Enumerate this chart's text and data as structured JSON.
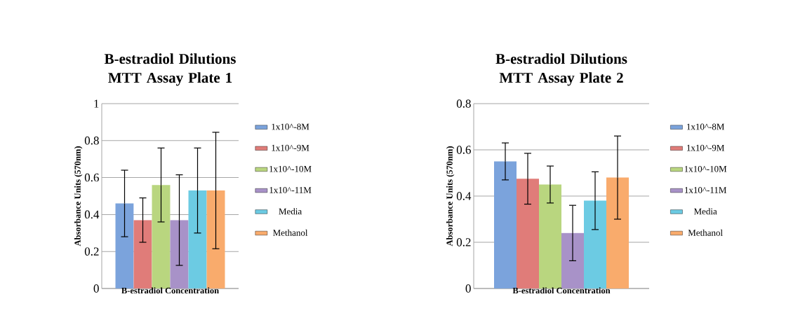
{
  "chart_data": [
    {
      "type": "bar",
      "title": "B-estradiol Dilutions MTT Assay Plate 1",
      "xlabel": "B-estradiol Concentration",
      "ylabel": "Absorbance Units (570nm)",
      "categories": [
        null
      ],
      "ylim": [
        0,
        1
      ],
      "yticks": [
        0,
        0.2,
        0.4,
        0.6,
        0.8,
        1
      ],
      "grid": "y",
      "legend": "right",
      "series": [
        {
          "name": "1x10^-8M",
          "color": "#7ba3dc",
          "values": [
            0.46
          ],
          "errors": [
            0.18
          ]
        },
        {
          "name": "1x10^-9M",
          "color": "#e07c79",
          "values": [
            0.37
          ],
          "errors": [
            0.12
          ]
        },
        {
          "name": "1x10^-10M",
          "color": "#b9d67f",
          "values": [
            0.56
          ],
          "errors": [
            0.2
          ]
        },
        {
          "name": "1x10^-11M",
          "color": "#a892c8",
          "values": [
            0.37
          ],
          "errors": [
            0.245
          ]
        },
        {
          "name": "Media",
          "color": "#6ccbe3",
          "values": [
            0.53
          ],
          "errors": [
            0.23
          ]
        },
        {
          "name": "Methanol",
          "color": "#f9ab6c",
          "values": [
            0.53
          ],
          "errors": [
            0.315
          ]
        }
      ]
    },
    {
      "type": "bar",
      "title": "B-estradiol Dilutions MTT Assay Plate 2",
      "xlabel": "B-estradiol Concentration",
      "ylabel": "Absorbance Units (570nm)",
      "categories": [
        null
      ],
      "ylim": [
        0,
        0.8
      ],
      "yticks": [
        0,
        0.2,
        0.4,
        0.6,
        0.8
      ],
      "grid": "y",
      "legend": "right",
      "series": [
        {
          "name": "1x10^-8M",
          "color": "#7ba3dc",
          "values": [
            0.55
          ],
          "errors": [
            0.08
          ]
        },
        {
          "name": "1x10^-9M",
          "color": "#e07c79",
          "values": [
            0.475
          ],
          "errors": [
            0.11
          ]
        },
        {
          "name": "1x10^-10M",
          "color": "#b9d67f",
          "values": [
            0.45
          ],
          "errors": [
            0.08
          ]
        },
        {
          "name": "1x10^-11M",
          "color": "#a892c8",
          "values": [
            0.24
          ],
          "errors": [
            0.12
          ]
        },
        {
          "name": "Media",
          "color": "#6ccbe3",
          "values": [
            0.38
          ],
          "errors": [
            0.125
          ]
        },
        {
          "name": "Methanol",
          "color": "#f9ab6c",
          "values": [
            0.48
          ],
          "errors": [
            0.18
          ]
        }
      ]
    }
  ]
}
